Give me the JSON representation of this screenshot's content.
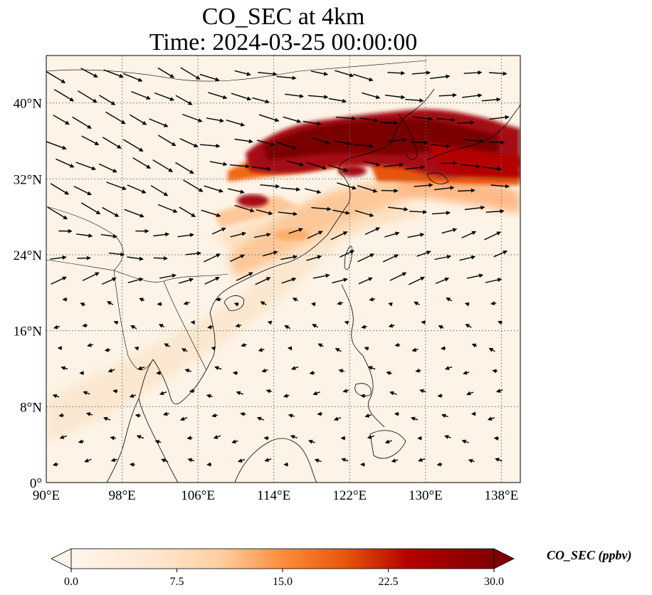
{
  "title": {
    "line1": "CO_SEC at 4km",
    "line2": "Time: 2024-03-25 00:00:00"
  },
  "map": {
    "lon_range": [
      90,
      140
    ],
    "lat_range": [
      0,
      45
    ],
    "lon_ticks": [
      {
        "value": 90,
        "label": "90°E"
      },
      {
        "value": 98,
        "label": "98°E"
      },
      {
        "value": 106,
        "label": "106°E"
      },
      {
        "value": 114,
        "label": "114°E"
      },
      {
        "value": 122,
        "label": "122°E"
      },
      {
        "value": 130,
        "label": "130°E"
      },
      {
        "value": 138,
        "label": "138°E"
      }
    ],
    "lat_ticks": [
      {
        "value": 0,
        "label": "0°"
      },
      {
        "value": 8,
        "label": "8°N"
      },
      {
        "value": 16,
        "label": "16°N"
      },
      {
        "value": 24,
        "label": "24°N"
      },
      {
        "value": 32,
        "label": "32°N"
      },
      {
        "value": 40,
        "label": "40°N"
      }
    ],
    "gridlines": "dotted",
    "plume_color_max": "#7a0000",
    "vector_color": "#000000"
  },
  "colorbar": {
    "label": "CO_SEC (ppbv)",
    "min": 0.0,
    "max": 30.0,
    "ticks": [
      "0.0",
      "7.5",
      "15.0",
      "22.5",
      "30.0"
    ],
    "colors": [
      "#fff5eb",
      "#fdd0a2",
      "#fd8d3c",
      "#d94801",
      "#a50f15",
      "#7f0000"
    ],
    "extend": "both"
  }
}
